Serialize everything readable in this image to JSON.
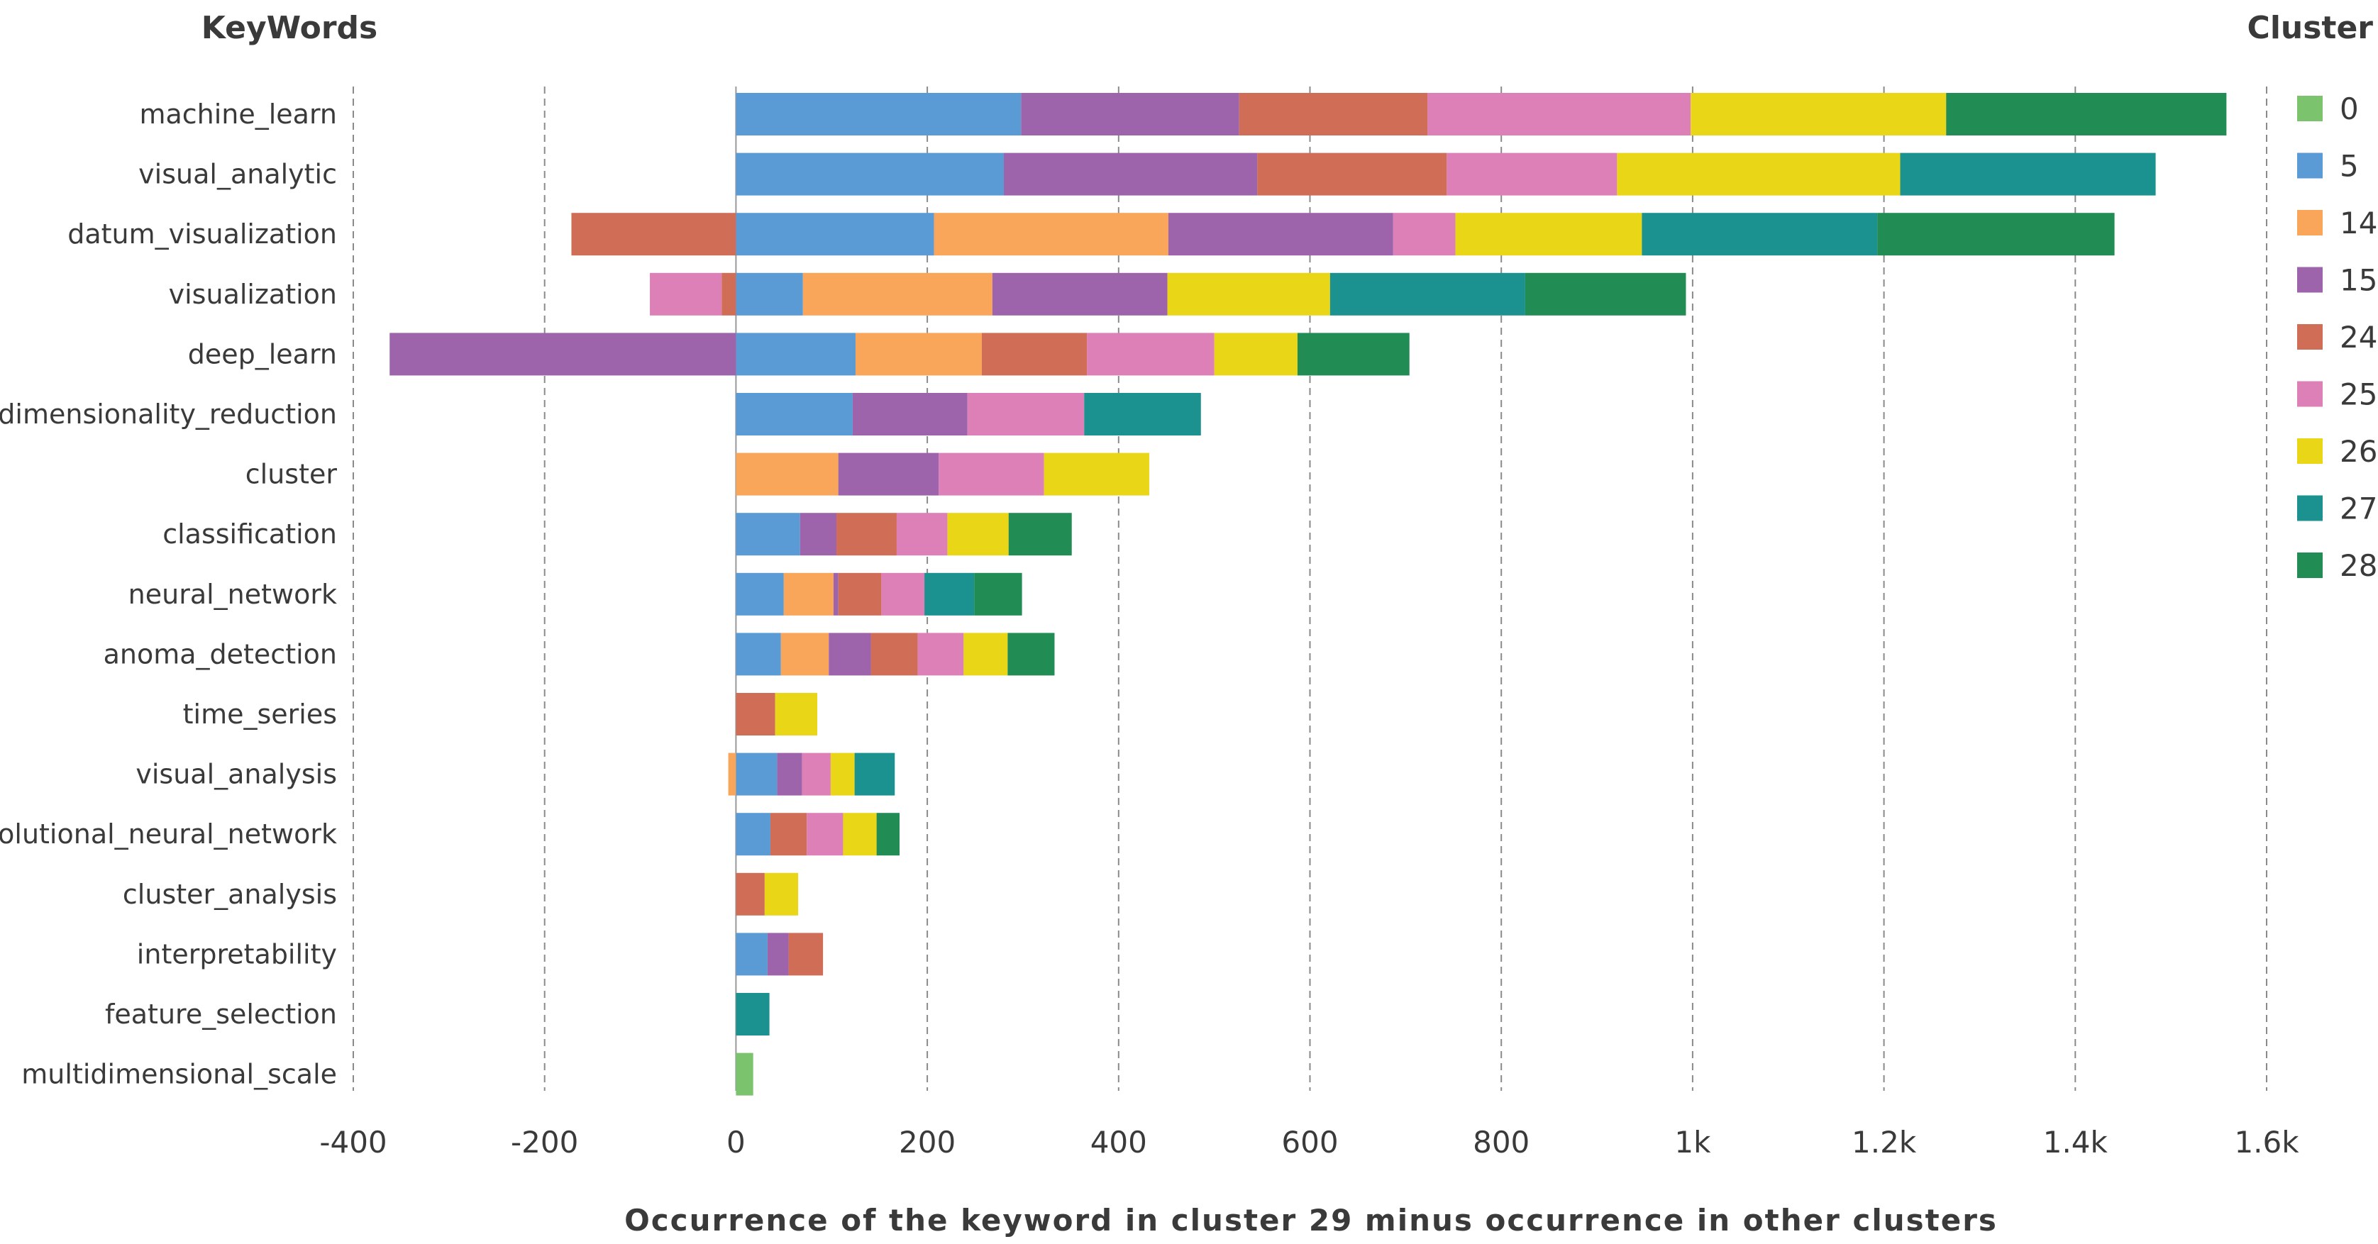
{
  "chart_data": {
    "type": "bar",
    "orientation": "horizontal",
    "stacked": true,
    "title": "",
    "header_left": "KeyWords",
    "legend_title": "Cluster",
    "legend_position": "right",
    "xlabel": "Occurrence of the keyword in cluster 29 minus occurrence in other clusters",
    "ylabel": "KeyWords",
    "xlim": [
      -400,
      1600
    ],
    "grid": true,
    "xticks": [
      -400,
      -200,
      0,
      200,
      400,
      600,
      800,
      1000,
      1200,
      1400,
      1600
    ],
    "xtick_labels": [
      "-400",
      "-200",
      "0",
      "200",
      "400",
      "600",
      "800",
      "1k",
      "1.2k",
      "1.4k",
      "1.6k"
    ],
    "categories": [
      "machine_learn",
      "visual_analytic",
      "datum_visualization",
      "visualization",
      "deep_learn",
      "dimensionality_reduction",
      "cluster",
      "classification",
      "neural_network",
      "anoma_detection",
      "time_series",
      "visual_analysis",
      "convolutional_neural_network",
      "cluster_analysis",
      "interpretability",
      "feature_selection",
      "multidimensional_scale"
    ],
    "series": [
      {
        "name": "0",
        "color": "#7cc36e",
        "values": [
          0,
          0,
          0,
          0,
          0,
          0,
          0,
          0,
          0,
          0,
          0,
          0,
          0,
          0,
          0,
          0,
          18
        ]
      },
      {
        "name": "5",
        "color": "#5b9bd5",
        "values": [
          298,
          280,
          207,
          70,
          125,
          122,
          0,
          67,
          50,
          47,
          0,
          43,
          36,
          0,
          33,
          0,
          0
        ]
      },
      {
        "name": "14",
        "color": "#f9a55a",
        "values": [
          0,
          0,
          245,
          198,
          132,
          0,
          107,
          0,
          52,
          50,
          0,
          -8,
          0,
          0,
          0,
          0,
          0
        ]
      },
      {
        "name": "15",
        "color": "#9e64ab",
        "values": [
          228,
          265,
          235,
          183,
          -362,
          120,
          105,
          38,
          5,
          44,
          0,
          26,
          0,
          0,
          22,
          0,
          0
        ]
      },
      {
        "name": "24",
        "color": "#d06d56",
        "values": [
          197,
          198,
          -172,
          -15,
          110,
          0,
          0,
          63,
          45,
          49,
          41,
          0,
          38,
          30,
          36,
          0,
          0
        ]
      },
      {
        "name": "25",
        "color": "#dc80b7",
        "values": [
          275,
          178,
          65,
          -75,
          133,
          122,
          110,
          53,
          45,
          48,
          0,
          30,
          38,
          0,
          0,
          0,
          0
        ]
      },
      {
        "name": "26",
        "color": "#e8d617",
        "values": [
          267,
          296,
          195,
          170,
          87,
          0,
          110,
          64,
          0,
          46,
          44,
          25,
          35,
          35,
          0,
          0,
          0
        ]
      },
      {
        "name": "27",
        "color": "#1b9190",
        "values": [
          0,
          267,
          246,
          204,
          0,
          122,
          0,
          0,
          52,
          0,
          0,
          42,
          0,
          0,
          0,
          35,
          0
        ]
      },
      {
        "name": "28",
        "color": "#218c54",
        "values": [
          293,
          0,
          248,
          168,
          117,
          0,
          0,
          66,
          50,
          49,
          0,
          0,
          24,
          0,
          0,
          0,
          0
        ]
      }
    ]
  }
}
